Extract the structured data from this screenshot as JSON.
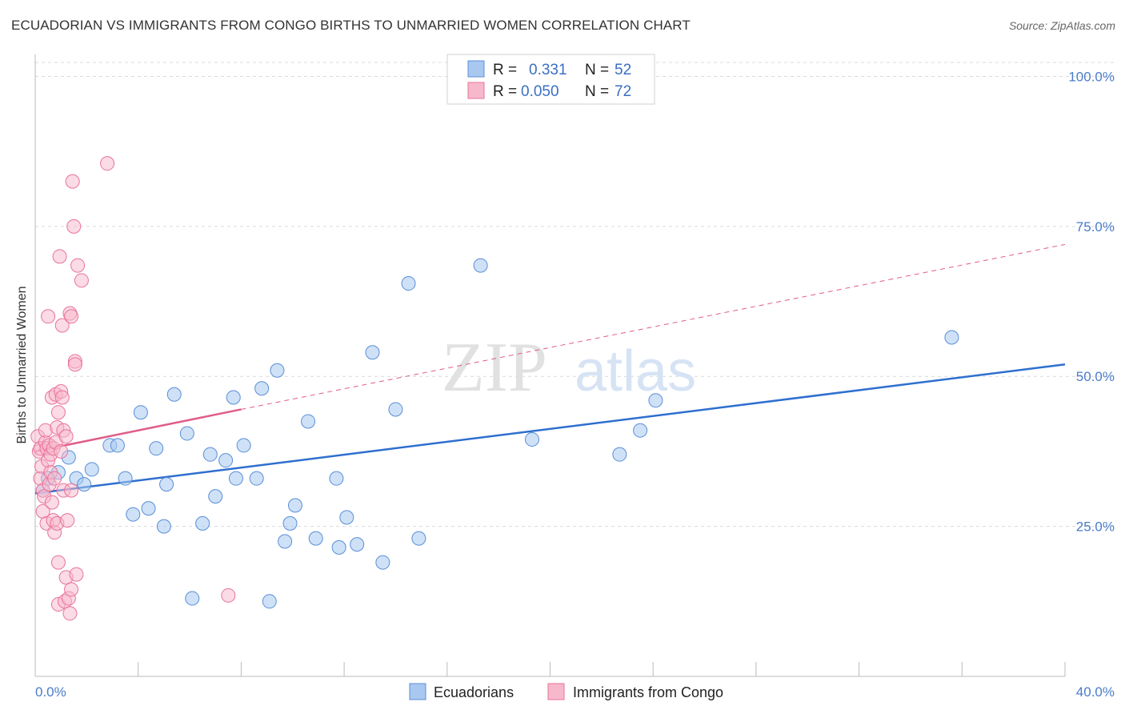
{
  "chart_data": {
    "type": "scatter",
    "title": "ECUADORIAN VS IMMIGRANTS FROM CONGO BIRTHS TO UNMARRIED WOMEN CORRELATION CHART",
    "source": "Source: ZipAtlas.com",
    "xlabel": "",
    "ylabel": "Births to Unmarried Women",
    "xlim": [
      0,
      40
    ],
    "ylim": [
      0,
      105
    ],
    "x_tick_labels": [
      "0.0%",
      "40.0%"
    ],
    "y_ticks": [
      25,
      50,
      75,
      100
    ],
    "y_tick_labels": [
      "25.0%",
      "50.0%",
      "75.0%",
      "100.0%"
    ],
    "watermark": "ZIPatlas",
    "colors": {
      "ecuadorians_fill": "#a8c8f0",
      "ecuadorians_stroke": "#5a8fd6",
      "ecuadorians_line": "#2e6fcf",
      "congo_fill": "#f7b8cb",
      "congo_stroke": "#e8739a",
      "congo_line": "#e05d88",
      "tick_text": "#4a7cc9",
      "grid": "#d9d9d9"
    },
    "legend": {
      "rows": [
        {
          "r_label": "R =",
          "r_value": "0.331",
          "n_label": "N =",
          "n_value": "52"
        },
        {
          "r_label": "R =",
          "r_value": "0.050",
          "n_label": "N =",
          "n_value": "72"
        }
      ]
    },
    "series": [
      {
        "name": "Ecuadorians",
        "trend": {
          "x0": 0,
          "y0": 30.5,
          "x1": 40,
          "y1": 52.0,
          "style": "solid"
        },
        "points": [
          [
            0.3,
            31
          ],
          [
            0.5,
            33
          ],
          [
            0.9,
            34
          ],
          [
            1.3,
            36.5
          ],
          [
            1.6,
            33
          ],
          [
            1.9,
            32
          ],
          [
            2.2,
            34.5
          ],
          [
            2.9,
            38.5
          ],
          [
            3.2,
            38.5
          ],
          [
            3.5,
            33
          ],
          [
            3.8,
            27
          ],
          [
            4.1,
            44
          ],
          [
            4.4,
            28
          ],
          [
            4.7,
            38
          ],
          [
            5.0,
            25
          ],
          [
            5.1,
            32
          ],
          [
            5.4,
            47
          ],
          [
            5.9,
            40.5
          ],
          [
            6.1,
            13
          ],
          [
            6.5,
            25.5
          ],
          [
            6.8,
            37
          ],
          [
            7.0,
            30
          ],
          [
            7.4,
            36
          ],
          [
            7.7,
            46.5
          ],
          [
            7.8,
            33
          ],
          [
            8.1,
            38.5
          ],
          [
            8.6,
            33
          ],
          [
            8.8,
            48
          ],
          [
            9.1,
            12.5
          ],
          [
            9.4,
            51
          ],
          [
            9.7,
            22.5
          ],
          [
            9.9,
            25.5
          ],
          [
            10.1,
            28.5
          ],
          [
            10.6,
            42.5
          ],
          [
            10.9,
            23
          ],
          [
            11.7,
            33
          ],
          [
            11.8,
            21.5
          ],
          [
            12.1,
            26.5
          ],
          [
            12.5,
            22
          ],
          [
            13.1,
            54
          ],
          [
            13.5,
            19
          ],
          [
            14.0,
            44.5
          ],
          [
            14.5,
            65.5
          ],
          [
            14.9,
            23
          ],
          [
            17.3,
            68.5
          ],
          [
            19.3,
            39.5
          ],
          [
            22.7,
            37
          ],
          [
            23.5,
            41
          ],
          [
            24.1,
            46
          ],
          [
            35.6,
            56.5
          ]
        ]
      },
      {
        "name": "Immigrants from Congo",
        "trend": {
          "x0": 0,
          "y0": 37.5,
          "x1": 8.0,
          "y1": 44.5,
          "x_end": 40,
          "y_end": 72.0,
          "style": "solid-then-dashed"
        },
        "points": [
          [
            0.1,
            40
          ],
          [
            0.15,
            37.5
          ],
          [
            0.2,
            38
          ],
          [
            0.2,
            33
          ],
          [
            0.25,
            35
          ],
          [
            0.3,
            31
          ],
          [
            0.3,
            27.5
          ],
          [
            0.35,
            30
          ],
          [
            0.4,
            39
          ],
          [
            0.4,
            41
          ],
          [
            0.45,
            38
          ],
          [
            0.45,
            25.5
          ],
          [
            0.5,
            60
          ],
          [
            0.5,
            36
          ],
          [
            0.55,
            38.5
          ],
          [
            0.55,
            32
          ],
          [
            0.6,
            37
          ],
          [
            0.6,
            34
          ],
          [
            0.65,
            46.5
          ],
          [
            0.65,
            29
          ],
          [
            0.7,
            38
          ],
          [
            0.7,
            26
          ],
          [
            0.75,
            24
          ],
          [
            0.75,
            33
          ],
          [
            0.8,
            47
          ],
          [
            0.8,
            39
          ],
          [
            0.85,
            41.5
          ],
          [
            0.85,
            25.5
          ],
          [
            0.9,
            44
          ],
          [
            0.9,
            19
          ],
          [
            0.9,
            12
          ],
          [
            0.95,
            70
          ],
          [
            1.0,
            47.5
          ],
          [
            1.0,
            37.5
          ],
          [
            1.05,
            46.5
          ],
          [
            1.05,
            58.5
          ],
          [
            1.1,
            41
          ],
          [
            1.1,
            31
          ],
          [
            1.15,
            12.5
          ],
          [
            1.2,
            40
          ],
          [
            1.2,
            16.5
          ],
          [
            1.25,
            26
          ],
          [
            1.3,
            13
          ],
          [
            1.35,
            10.5
          ],
          [
            1.4,
            14.5
          ],
          [
            1.4,
            31
          ],
          [
            1.35,
            60.5
          ],
          [
            1.4,
            60
          ],
          [
            1.45,
            82.5
          ],
          [
            1.5,
            75
          ],
          [
            1.55,
            52.5
          ],
          [
            1.55,
            52
          ],
          [
            1.6,
            17
          ],
          [
            1.65,
            68.5
          ],
          [
            1.8,
            66
          ],
          [
            2.8,
            85.5
          ],
          [
            7.5,
            13.5
          ]
        ]
      }
    ]
  },
  "bottom_legend": {
    "items": [
      {
        "label": "Ecuadorians"
      },
      {
        "label": "Immigrants from Congo"
      }
    ]
  }
}
